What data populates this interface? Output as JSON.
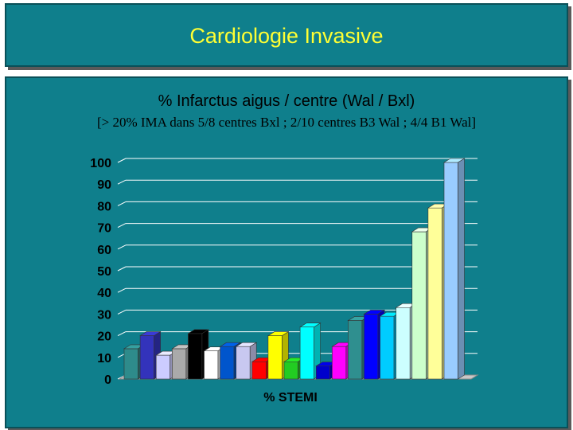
{
  "slide": {
    "title": "Cardiologie Invasive"
  },
  "chart_data": {
    "type": "bar",
    "title": "% Infarctus aigus / centre (Wal / Bxl)",
    "subtitle": "[> 20% IMA dans 5/8 centres Bxl ; 2/10 centres B3 Wal ; 4/4 B1 Wal]",
    "xlabel": "% STEMI",
    "ylabel": "",
    "ylim": [
      0,
      100
    ],
    "yticks": [
      0,
      10,
      20,
      30,
      40,
      50,
      60,
      70,
      80,
      90,
      100
    ],
    "grid": true,
    "values": [
      14,
      20,
      11,
      14,
      21,
      13,
      15,
      15,
      8,
      20,
      8,
      24,
      6,
      15,
      27,
      30,
      29,
      33,
      68,
      79,
      100
    ],
    "colors": [
      "#2e8b8b",
      "#3333bb",
      "#ccccff",
      "#aaaaaa",
      "#000000",
      "#ffffff",
      "#0055cc",
      "#c8c8f0",
      "#ff0000",
      "#ffff00",
      "#22cc22",
      "#00ffff",
      "#0000cc",
      "#ff00ff",
      "#2f8f8f",
      "#0000ff",
      "#00ccff",
      "#ccffff",
      "#ccffcc",
      "#ffff99",
      "#99ccff"
    ]
  }
}
